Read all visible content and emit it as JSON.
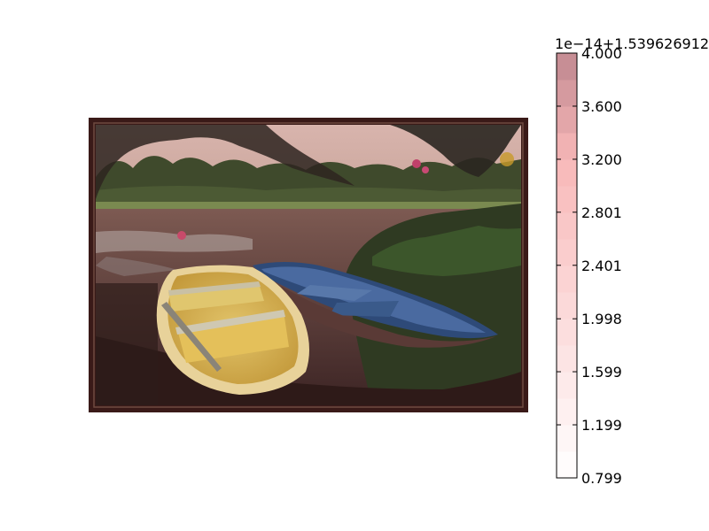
{
  "chart_data": {
    "type": "image_with_colorbar",
    "image_description": "photo",
    "colorbar": {
      "offset_text": "1e−14+1.539626912",
      "tick_labels": [
        "0.799",
        "1.199",
        "1.599",
        "1.998",
        "2.401",
        "2.801",
        "3.200",
        "3.600",
        "4.000"
      ],
      "ticks": [
        0.799,
        1.199,
        1.599,
        1.998,
        2.401,
        2.801,
        3.2,
        3.6,
        4.0
      ],
      "vmin": 0.799,
      "vmax": 4.0,
      "levels": 16,
      "colormap_start": "#ffffff",
      "colormap_mid": "#f8b8b8",
      "colormap_end": "#c08890"
    },
    "colors": {
      "frame": "#3a1a18",
      "sky": "#d8b8b0",
      "dark_foreground": "#3a1c1c",
      "water": "#6a4a44",
      "yellow_boat": "#d8b050",
      "blue_boat": "#3a5a8a"
    }
  }
}
